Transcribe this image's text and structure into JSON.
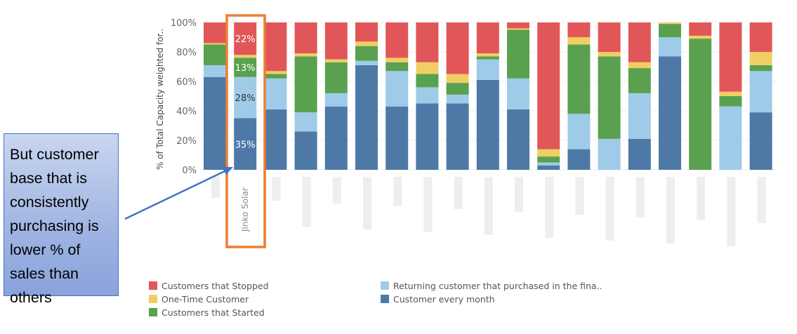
{
  "annotation": {
    "text": "But customer base that is consistently purchasing is lower % of sales than others"
  },
  "highlight": {
    "category": "Jinko Solar"
  },
  "chart_data": {
    "type": "bar",
    "stacked": true,
    "normalized": true,
    "ylabel": "% of Total Capacity weighted for..",
    "ylim": [
      0,
      100
    ],
    "yticks": [
      "0%",
      "20%",
      "40%",
      "60%",
      "80%",
      "100%"
    ],
    "grid": true,
    "legend_position": "bottom",
    "categories": [
      "",
      "Jinko Solar",
      "",
      "",
      "",
      "",
      "",
      "",
      "",
      "",
      "",
      "",
      "",
      "",
      "",
      "",
      "",
      "",
      ""
    ],
    "series": [
      {
        "name": "Customer every month",
        "color": "#4e79a7",
        "values": [
          63,
          35,
          41,
          26,
          43,
          71,
          43,
          45,
          45,
          61,
          41,
          3,
          14,
          0,
          21,
          77,
          0,
          0,
          39
        ]
      },
      {
        "name": "Returning customer that purchased in the fina..",
        "color": "#a0cbe8",
        "values": [
          8,
          28,
          21,
          13,
          9,
          3,
          24,
          11,
          6,
          14,
          21,
          2,
          24,
          21,
          31,
          13,
          0,
          43,
          28
        ]
      },
      {
        "name": "Customers that Started",
        "color": "#59a14f",
        "values": [
          14,
          13,
          3,
          38,
          21,
          10,
          6,
          9,
          8,
          2,
          33,
          4,
          47,
          56,
          17,
          9,
          89,
          7,
          4
        ]
      },
      {
        "name": "One-Time Customer",
        "color": "#f1ce63",
        "values": [
          1,
          2,
          2,
          2,
          2,
          3,
          3,
          8,
          6,
          2,
          1,
          5,
          5,
          3,
          4,
          1,
          2,
          3,
          9
        ]
      },
      {
        "name": "Customers that Stopped",
        "color": "#e15759",
        "values": [
          14,
          22,
          33,
          21,
          25,
          13,
          24,
          27,
          35,
          21,
          4,
          86,
          10,
          20,
          27,
          0,
          9,
          47,
          20
        ]
      }
    ],
    "data_labels": {
      "Jinko Solar": [
        "35%",
        "28%",
        "13%",
        "",
        "22%"
      ]
    }
  },
  "legend": {
    "items": [
      {
        "label": "Customers that Stopped",
        "color": "#e15759"
      },
      {
        "label": "One-Time Customer",
        "color": "#f1ce63"
      },
      {
        "label": "Customers that Started",
        "color": "#59a14f"
      },
      {
        "label": "Returning customer that purchased in the fina..",
        "color": "#a0cbe8"
      },
      {
        "label": "Customer every month",
        "color": "#4e79a7"
      }
    ]
  }
}
